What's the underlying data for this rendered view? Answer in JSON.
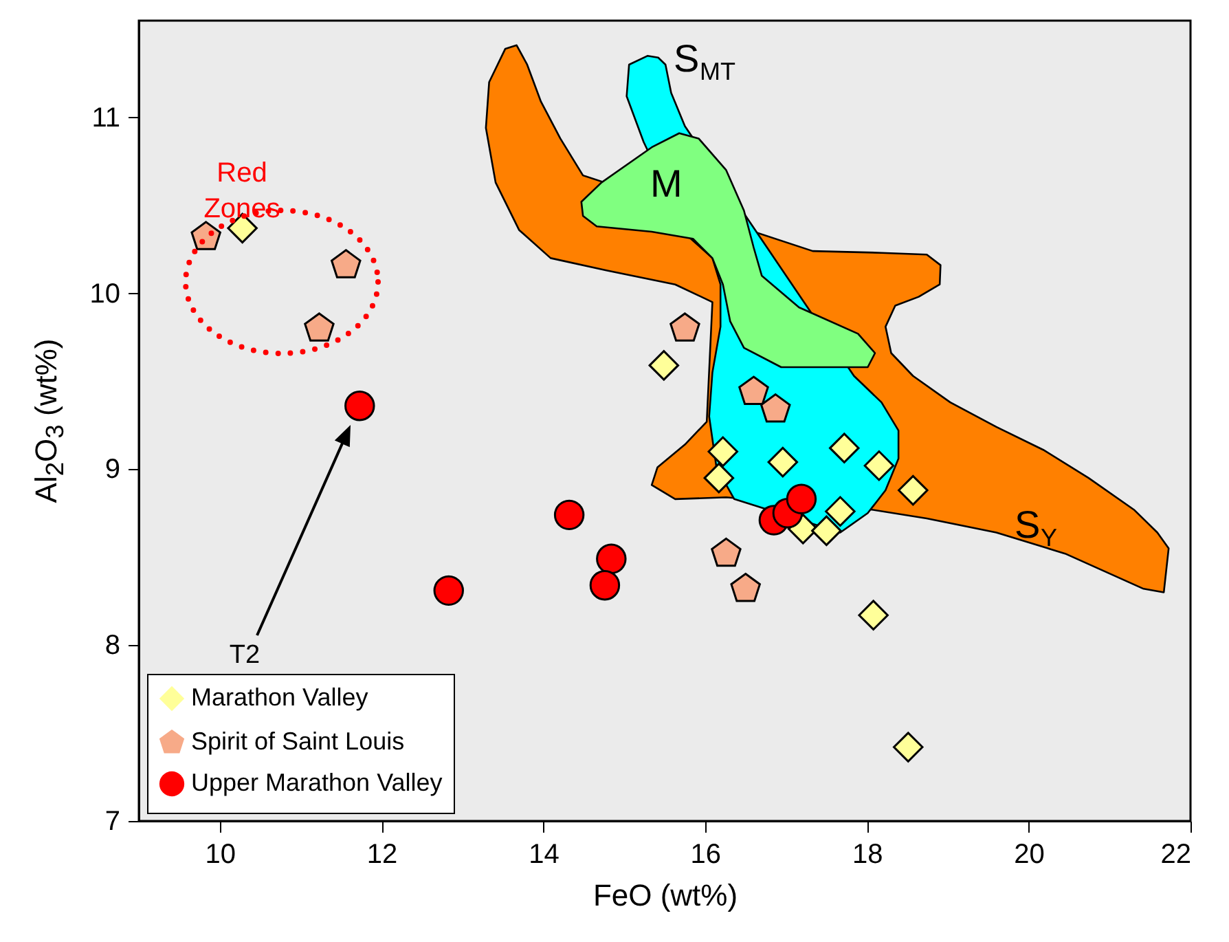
{
  "chart_data": {
    "type": "scatter",
    "xlabel": "FeO (wt%)",
    "ylabel": "Al$_{2}$O$_{3}$ (wt%)",
    "xlim": [
      9,
      22
    ],
    "ylim": [
      7,
      11.55
    ],
    "xticks": [
      10,
      12,
      14,
      16,
      18,
      20,
      22
    ],
    "yticks": [
      7,
      8,
      9,
      10,
      11
    ],
    "grid": false,
    "legend": "bottom left",
    "annotations": [
      "T2",
      "Red Zones"
    ],
    "series": [
      {
        "type": "area",
        "name": "S$_{Y}$",
        "color": "#ff8000",
        "x": [
          13.53,
          13.67,
          13.8,
          13.97,
          14.21,
          14.49,
          17.33,
          18.18,
          18.74,
          18.91,
          18.9,
          18.64,
          18.35,
          18.23,
          18.3,
          18.57,
          19.03,
          19.6,
          20.18,
          20.74,
          21.3,
          21.59,
          21.73,
          21.67,
          21.42,
          20.45,
          19.6,
          18.74,
          18.06,
          16.26,
          15.63,
          15.34,
          15.41,
          15.75,
          16.02,
          16.09,
          15.63,
          14.78,
          14.09,
          13.7,
          13.41,
          13.29,
          13.33
        ],
        "values": [
          11.39,
          11.41,
          11.3,
          11.09,
          10.88,
          10.67,
          10.24,
          10.23,
          10.22,
          10.16,
          10.05,
          9.98,
          9.93,
          9.81,
          9.66,
          9.53,
          9.38,
          9.24,
          9.11,
          8.95,
          8.77,
          8.64,
          8.55,
          8.3,
          8.32,
          8.52,
          8.64,
          8.72,
          8.77,
          8.84,
          8.83,
          8.91,
          9.01,
          9.14,
          9.27,
          9.95,
          10.05,
          10.13,
          10.2,
          10.36,
          10.63,
          10.94,
          11.2
        ]
      },
      {
        "type": "area",
        "name": "S$_{MT}$",
        "color": "#00ffff",
        "x": [
          15.29,
          15.42,
          15.51,
          15.58,
          15.75,
          17.84,
          18.18,
          18.39,
          18.39,
          18.23,
          18.01,
          17.67,
          16.36,
          16.14,
          16.05,
          16.09,
          16.19,
          16.19,
          16.09,
          15.8,
          15.24,
          15.03,
          15.06
        ],
        "values": [
          11.35,
          11.34,
          11.3,
          11.14,
          10.95,
          9.53,
          9.38,
          9.22,
          9.06,
          8.88,
          8.75,
          8.64,
          8.83,
          9.01,
          9.3,
          9.55,
          9.81,
          10.05,
          10.2,
          10.32,
          10.86,
          11.12,
          11.3
        ]
      },
      {
        "type": "area",
        "name": "M",
        "color": "#80ff80",
        "x": [
          14.47,
          14.72,
          15.34,
          15.68,
          15.92,
          16.26,
          16.48,
          16.6,
          16.7,
          17.16,
          17.89,
          18.1,
          18.01,
          16.94,
          16.48,
          16.31,
          16.22,
          16.09,
          15.85,
          15.34,
          14.66,
          14.49
        ],
        "values": [
          10.52,
          10.63,
          10.83,
          10.91,
          10.88,
          10.7,
          10.47,
          10.26,
          10.1,
          9.92,
          9.77,
          9.66,
          9.58,
          9.58,
          9.69,
          9.84,
          10.05,
          10.2,
          10.31,
          10.35,
          10.38,
          10.44
        ]
      },
      {
        "name": "Marathon Valley",
        "marker": "diamond",
        "color": "#ffff99",
        "x": [
          10.28,
          15.49,
          16.22,
          16.17,
          16.96,
          17.72,
          18.15,
          18.57,
          17.67,
          17.21,
          17.5,
          18.08,
          18.51
        ],
        "values": [
          10.37,
          9.59,
          9.1,
          8.95,
          9.04,
          9.12,
          9.02,
          8.88,
          8.76,
          8.66,
          8.65,
          8.17,
          7.42
        ]
      },
      {
        "name": "Spirit of Saint Louis",
        "color": "#f7aa88",
        "x": [
          9.83,
          11.56,
          11.23,
          15.75,
          16.6,
          16.87,
          16.26,
          16.5
        ],
        "values": [
          10.32,
          10.16,
          9.8,
          9.8,
          9.44,
          9.34,
          8.52,
          8.32
        ]
      },
      {
        "name": "Upper Marathon Valley",
        "marker": "circle",
        "color": "#ff0000",
        "x": [
          11.73,
          14.32,
          14.84,
          14.76,
          12.83,
          16.85,
          17.02,
          17.19
        ],
        "values": [
          9.36,
          8.74,
          8.49,
          8.34,
          8.31,
          8.71,
          8.75,
          8.83
        ]
      }
    ]
  }
}
